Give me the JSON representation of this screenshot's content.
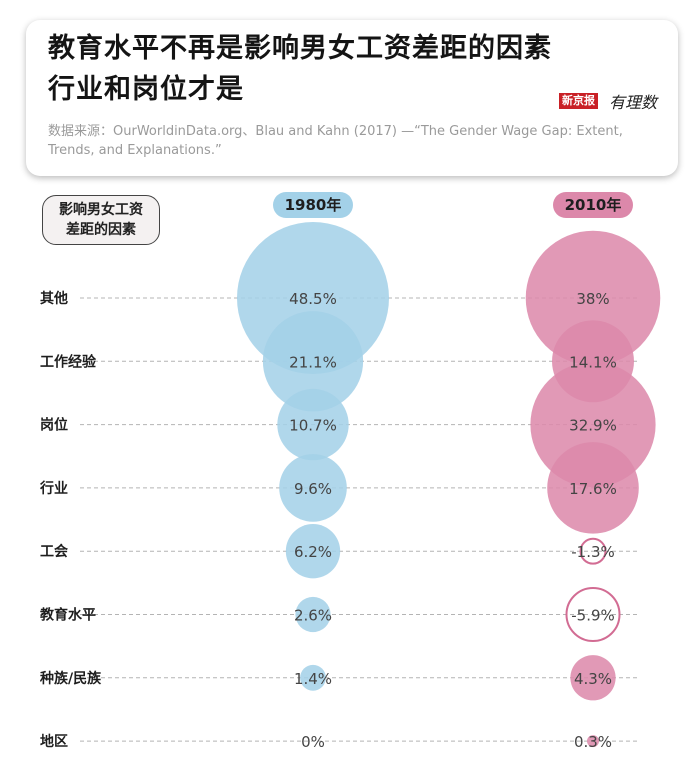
{
  "header": {
    "title_line1": "教育水平不再是影响男女工资差距的因素",
    "title_line2": "行业和岗位才是",
    "brand_left": "新京报",
    "brand_right": "有理数",
    "source": "数据来源：OurWorldinData.org、Blau and Kahn (2017) —“The Gender Wage Gap: Extent, Trends, and Explanations.”"
  },
  "colors": {
    "bubble_1980": "#a3d1e8",
    "bubble_2010": "#dc88aa",
    "negative_stroke": "#d26c93",
    "dash_line": "#b4b4b4"
  },
  "chart_data": {
    "type": "bubble",
    "title": "教育水平不再是影响男女工资差距的因素 行业和岗位才是",
    "row_header": "影响男女工资差距的因素",
    "categories": [
      "其他",
      "工作经验",
      "岗位",
      "行业",
      "工会",
      "教育水平",
      "种族/民族",
      "地区"
    ],
    "series": [
      {
        "name": "1980年",
        "values": [
          48.5,
          21.1,
          10.7,
          9.6,
          6.2,
          2.6,
          1.4,
          0
        ],
        "labels": [
          "48.5%",
          "21.1%",
          "10.7%",
          "9.6%",
          "6.2%",
          "2.6%",
          "1.4%",
          "0%"
        ]
      },
      {
        "name": "2010年",
        "values": [
          38,
          14.1,
          32.9,
          17.6,
          -1.3,
          -5.9,
          4.3,
          0.3
        ],
        "labels": [
          "38%",
          "14.1%",
          "32.9%",
          "17.6%",
          "-1.3%",
          "-5.9%",
          "4.3%",
          "0.3%"
        ]
      }
    ],
    "note": "negative values drawn as hollow circles"
  }
}
